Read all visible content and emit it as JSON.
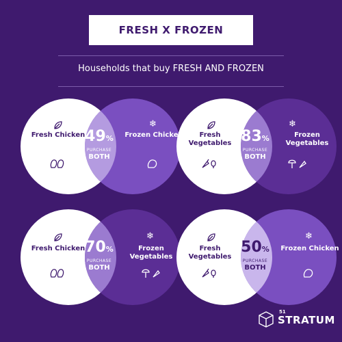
{
  "title": "FRESH X FROZEN",
  "subtitle": "Households that buy FRESH AND FROZEN",
  "colors": {
    "background": "#3f1a6e",
    "left_circle": "#ffffff",
    "right_circle": "#5b2e95",
    "overlap": "#9b7bd0"
  },
  "vennA": {
    "left_label": "Fresh Chicken",
    "right_label": "Frozen Chicken",
    "percent": "49",
    "percent_sign": "%",
    "purchase": "PURCHASE",
    "both": "BOTH",
    "left_icon": "chicken-icon",
    "right_icon": "frozen-chicken-icon"
  },
  "vennB": {
    "left_label": "Fresh Vegetables",
    "right_label": "Frozen Vegetables",
    "percent": "83",
    "percent_sign": "%",
    "purchase": "PURCHASE",
    "both": "BOTH",
    "left_icon": "vegetables-icon",
    "right_icon": "frozen-vegetables-icon"
  },
  "vennC": {
    "left_label": "Fresh Chicken",
    "right_label": "Frozen Vegetables",
    "percent": "70",
    "percent_sign": "%",
    "purchase": "PURCHASE",
    "both": "BOTH",
    "left_icon": "chicken-icon",
    "right_icon": "frozen-vegetables-icon"
  },
  "vennD": {
    "left_label": "Fresh Vegetables",
    "right_label": "Frozen Chicken",
    "percent": "50",
    "percent_sign": "%",
    "purchase": "PURCHASE",
    "both": "BOTH",
    "left_icon": "vegetables-icon",
    "right_icon": "frozen-chicken-icon"
  },
  "brand": {
    "mark": "51",
    "name": "STRATUM"
  }
}
